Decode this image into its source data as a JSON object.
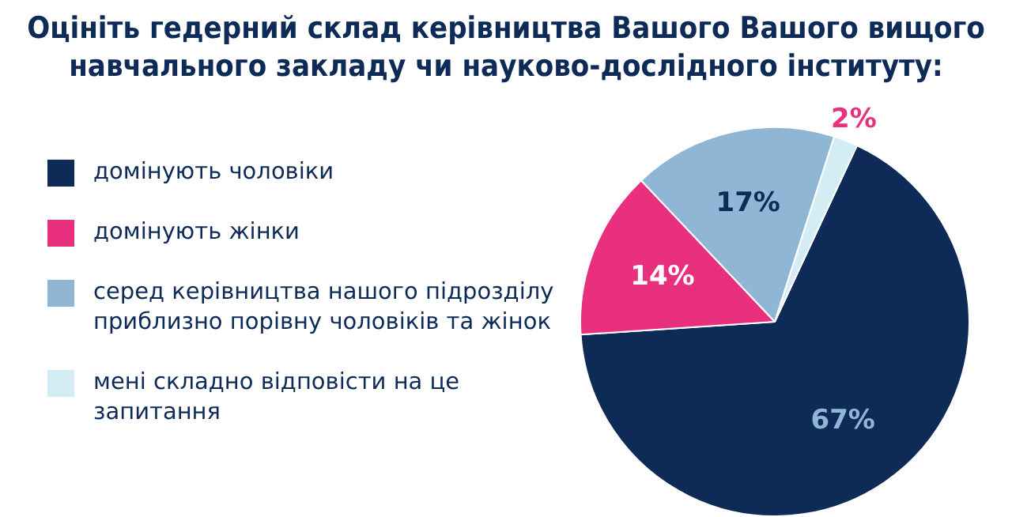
{
  "chart_data": {
    "type": "pie",
    "title": "Оцініть гедерний склад керівництва Вашого Вашого вищого навчального закладу чи науково-дослідного інституту:",
    "categories": [
      "домінують чоловіки",
      "домінують жінки",
      "серед керівництва нашого підрозділу приблизно порівну чоловіків та жінок",
      "мені складно відповісти на це запитання"
    ],
    "values": [
      67,
      14,
      17,
      2
    ],
    "colors": [
      "#0d2b56",
      "#e8307f",
      "#8fb6d4",
      "#d4ecf3"
    ],
    "value_labels": [
      "67%",
      "14%",
      "17%",
      "2%"
    ],
    "legend": "left"
  }
}
